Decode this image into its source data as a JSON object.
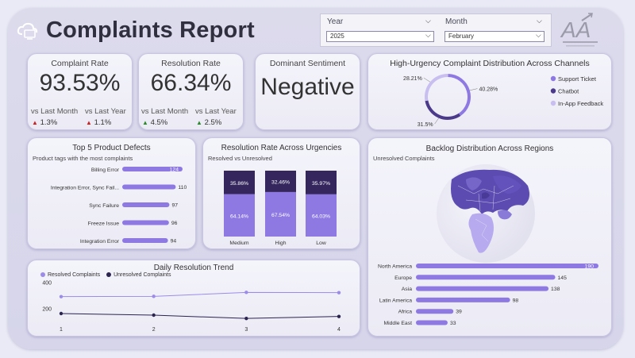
{
  "header": {
    "title": "Complaints Report",
    "filters": {
      "year_label": "Year",
      "year_value": "2025",
      "month_label": "Month",
      "month_value": "February"
    },
    "logo_text": "AA"
  },
  "kpis": {
    "complaint_rate": {
      "label": "Complaint Rate",
      "value": "93.53%",
      "vs_month_label": "vs Last Month",
      "vs_year_label": "vs Last Year",
      "vs_month_value": "1.3%",
      "vs_year_value": "1.1%",
      "vs_month_dir": "down",
      "vs_year_dir": "down"
    },
    "resolution_rate": {
      "label": "Resolution Rate",
      "value": "66.34%",
      "vs_month_label": "vs Last Month",
      "vs_year_label": "vs Last Year",
      "vs_month_value": "4.5%",
      "vs_year_value": "2.5%",
      "vs_month_dir": "up",
      "vs_year_dir": "up"
    },
    "sentiment": {
      "label": "Dominant Sentiment",
      "value": "Negative"
    }
  },
  "colors": {
    "purple_light": "#9c8ce8",
    "purple_mid": "#7b63d6",
    "purple_dark": "#35275e",
    "delta_up": "#2b8a2b",
    "delta_down": "#cc2222"
  },
  "chart_data": [
    {
      "id": "urgency_channels",
      "type": "pie",
      "title": "High-Urgency Complaint Distribution Across Channels",
      "labels": [
        "Support Ticket",
        "Chatbot",
        "In-App Feedback"
      ],
      "values": [
        40.28,
        31.5,
        28.21
      ],
      "value_labels": [
        "40.28%",
        "31.5%",
        "28.21%"
      ],
      "colors": [
        "#8e79e3",
        "#4b3a8a",
        "#c8bef0"
      ],
      "legend": "right"
    },
    {
      "id": "top_defects",
      "type": "bar",
      "orientation": "horizontal",
      "title": "Top 5 Product Defects",
      "subtitle": "Product tags with the most complaints",
      "categories": [
        "Billing Error",
        "Integration Error, Sync Fail...",
        "Sync Failure",
        "Freeze Issue",
        "Integration Error"
      ],
      "values": [
        124,
        110,
        97,
        96,
        94
      ]
    },
    {
      "id": "resolution_urgency",
      "type": "bar",
      "stacked": true,
      "title": "Resolution Rate Across Urgencies",
      "subtitle": "Resolved vs Unresolved",
      "categories": [
        "Medium",
        "High",
        "Low"
      ],
      "series": [
        {
          "values": [
            64.14,
            67.54,
            64.03
          ],
          "labels": [
            "64.14%",
            "67.54%",
            "64.03%"
          ],
          "color": "#8e79e3"
        },
        {
          "values": [
            35.86,
            32.46,
            35.97
          ],
          "labels": [
            "35.86%",
            "32.46%",
            "35.97%"
          ],
          "color": "#35275e"
        }
      ],
      "ylim": [
        0,
        100
      ]
    },
    {
      "id": "daily_trend",
      "type": "line",
      "title": "Daily Resolution Trend",
      "x": [
        1,
        2,
        3,
        4
      ],
      "series": [
        {
          "name": "Resolved Complaints",
          "values": [
            290,
            292,
            322,
            320
          ],
          "color": "#9c8ce8"
        },
        {
          "name": "Unresolved Complaints",
          "values": [
            162,
            150,
            125,
            140
          ],
          "color": "#2b2450"
        }
      ],
      "yticks": [
        200,
        400
      ],
      "ylim": [
        60,
        420
      ],
      "legend": "top-left"
    },
    {
      "id": "backlog_regions",
      "type": "bar",
      "orientation": "horizontal",
      "title": "Backlog Distribution Across Regions",
      "subtitle": "Unresolved Complaints",
      "categories": [
        "North America",
        "Europe",
        "Asia",
        "Latin America",
        "Africa",
        "Middle East"
      ],
      "values": [
        190,
        145,
        138,
        98,
        39,
        33
      ]
    }
  ]
}
